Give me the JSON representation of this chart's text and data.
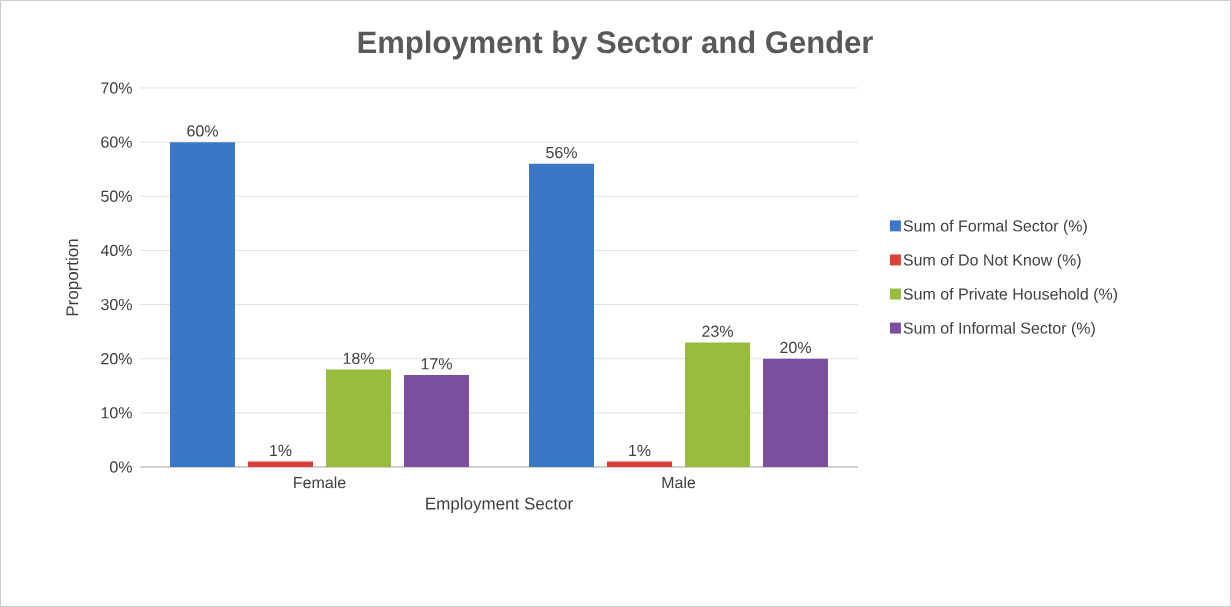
{
  "chart_data": {
    "type": "bar",
    "title": "Employment by Sector and Gender",
    "xlabel": "Employment Sector",
    "ylabel": "Proportion",
    "categories": [
      "Female",
      "Male"
    ],
    "series": [
      {
        "name": "Sum of Formal Sector (%)",
        "color": "#3a78c6",
        "values": [
          60,
          56
        ],
        "value_labels": [
          "60%",
          "56%"
        ]
      },
      {
        "name": "Sum of Do Not Know (%)",
        "color": "#d9403a",
        "values": [
          1,
          1
        ],
        "value_labels": [
          "1%",
          "1%"
        ]
      },
      {
        "name": "Sum of Private Household (%)",
        "color": "#98bc3c",
        "values": [
          18,
          23
        ],
        "value_labels": [
          "18%",
          "23%"
        ]
      },
      {
        "name": "Sum of Informal Sector (%)",
        "color": "#7b4f9e",
        "values": [
          17,
          20
        ],
        "value_labels": [
          "17%",
          "20%"
        ]
      }
    ],
    "ylim": [
      0,
      70
    ],
    "yticks": [
      {
        "value": 0,
        "label": "0%"
      },
      {
        "value": 10,
        "label": "10%"
      },
      {
        "value": 20,
        "label": "20%"
      },
      {
        "value": 30,
        "label": "30%"
      },
      {
        "value": 40,
        "label": "40%"
      },
      {
        "value": 50,
        "label": "50%"
      },
      {
        "value": 60,
        "label": "60%"
      },
      {
        "value": 70,
        "label": "70%"
      }
    ],
    "grid": "y",
    "legend": "right"
  }
}
